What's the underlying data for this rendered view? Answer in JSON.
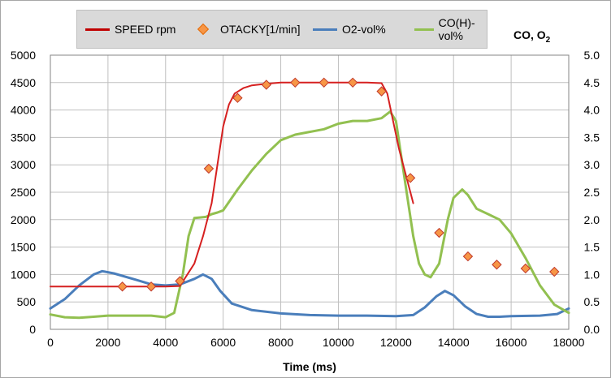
{
  "chart_data": {
    "type": "line",
    "title": "",
    "xlabel": "Time (ms)",
    "ylabel": "",
    "y2label_main": "CO, O",
    "y2label_sub": "2",
    "xlim": [
      0,
      18000
    ],
    "ylim": [
      0,
      5000
    ],
    "y2lim": [
      0.0,
      5.0
    ],
    "grid": true,
    "x_ticks": [
      "0",
      "2000",
      "4000",
      "6000",
      "8000",
      "10000",
      "12000",
      "14000",
      "16000",
      "18000"
    ],
    "y_ticks": [
      "0",
      "500",
      "1000",
      "1500",
      "2000",
      "2500",
      "3000",
      "3500",
      "4000",
      "4500",
      "5000"
    ],
    "y2_ticks": [
      "0.0",
      "0.5",
      "1.0",
      "1.5",
      "2.0",
      "2.5",
      "3.0",
      "3.5",
      "4.0",
      "4.5",
      "5.0"
    ],
    "legend": {
      "placement": "top",
      "items": [
        {
          "label": "SPEED rpm",
          "kind": "line",
          "color": "#c00000"
        },
        {
          "label": "OTACKY[1/min]",
          "kind": "marker",
          "color": "#f79646"
        },
        {
          "label": "O2-vol%",
          "kind": "line",
          "color": "#4a7ebb"
        },
        {
          "label": "CO(H)-vol%",
          "kind": "line",
          "color": "#92c050"
        }
      ]
    },
    "series": [
      {
        "name": "SPEED rpm",
        "axis": "left",
        "kind": "line",
        "color": "#d62020",
        "x": [
          0,
          1000,
          2000,
          3000,
          4000,
          4500,
          5000,
          5300,
          5600,
          5800,
          6000,
          6200,
          6400,
          6700,
          7000,
          7500,
          8000,
          9000,
          10000,
          11000,
          11500,
          11700,
          11900,
          12100,
          12300,
          12500,
          12600
        ],
        "y": [
          780,
          780,
          780,
          780,
          780,
          790,
          1200,
          1700,
          2300,
          3000,
          3700,
          4100,
          4300,
          4400,
          4450,
          4480,
          4500,
          4500,
          4500,
          4500,
          4490,
          4300,
          3800,
          3300,
          2900,
          2500,
          2300
        ]
      },
      {
        "name": "OTACKY[1/min]",
        "axis": "left",
        "kind": "marker",
        "color": "#f79646",
        "x": [
          2500,
          3500,
          4500,
          5500,
          6500,
          7500,
          8500,
          9500,
          10500,
          11500,
          12500,
          13500,
          14500,
          15500,
          16500,
          17500
        ],
        "y": [
          780,
          780,
          880,
          2930,
          4220,
          4460,
          4500,
          4500,
          4500,
          4340,
          2760,
          1760,
          1330,
          1180,
          1110,
          1050
        ]
      },
      {
        "name": "O2-vol%",
        "axis": "right",
        "kind": "line",
        "color": "#4a7ebb",
        "x": [
          0,
          500,
          1000,
          1500,
          1800,
          2200,
          3000,
          3500,
          4000,
          4500,
          5000,
          5300,
          5600,
          5900,
          6300,
          7000,
          8000,
          9000,
          10000,
          11000,
          12000,
          12600,
          13000,
          13400,
          13700,
          14000,
          14400,
          14800,
          15200,
          15600,
          16000,
          17000,
          17600,
          18000
        ],
        "y": [
          0.38,
          0.55,
          0.8,
          1.0,
          1.06,
          1.02,
          0.9,
          0.82,
          0.8,
          0.82,
          0.92,
          1.0,
          0.92,
          0.7,
          0.47,
          0.35,
          0.29,
          0.26,
          0.25,
          0.25,
          0.24,
          0.26,
          0.4,
          0.6,
          0.7,
          0.62,
          0.42,
          0.28,
          0.23,
          0.23,
          0.24,
          0.25,
          0.28,
          0.38
        ]
      },
      {
        "name": "CO(H)-vol%",
        "axis": "right",
        "kind": "line",
        "color": "#92c050",
        "x": [
          0,
          500,
          1000,
          1500,
          2000,
          3000,
          3500,
          4000,
          4300,
          4600,
          4800,
          5000,
          5200,
          5400,
          5600,
          5800,
          6000,
          6500,
          7000,
          7500,
          8000,
          8500,
          9000,
          9500,
          10000,
          10500,
          11000,
          11500,
          11800,
          12000,
          12200,
          12400,
          12600,
          12800,
          13000,
          13200,
          13500,
          13800,
          14000,
          14300,
          14500,
          14800,
          15200,
          15600,
          16000,
          16500,
          17000,
          17500,
          18000
        ],
        "y": [
          0.27,
          0.22,
          0.21,
          0.23,
          0.25,
          0.25,
          0.25,
          0.22,
          0.3,
          1.0,
          1.7,
          2.03,
          2.04,
          2.05,
          2.1,
          2.13,
          2.17,
          2.55,
          2.9,
          3.2,
          3.45,
          3.55,
          3.6,
          3.65,
          3.75,
          3.8,
          3.8,
          3.85,
          3.97,
          3.8,
          3.1,
          2.4,
          1.7,
          1.2,
          1.0,
          0.95,
          1.2,
          2.0,
          2.4,
          2.55,
          2.45,
          2.2,
          2.1,
          2.0,
          1.75,
          1.3,
          0.8,
          0.45,
          0.3
        ]
      }
    ]
  }
}
